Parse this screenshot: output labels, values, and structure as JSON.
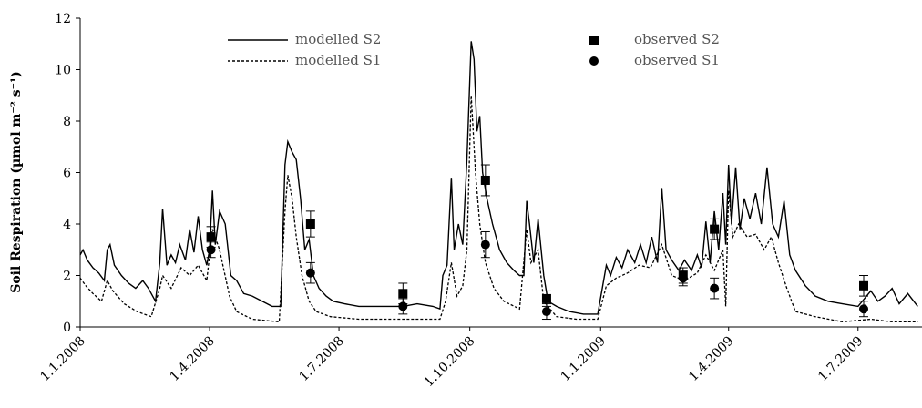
{
  "chart_data": {
    "type": "line",
    "title": "",
    "xlabel": "",
    "ylabel": "Soil Respiration (µmol m⁻² s⁻¹)",
    "ylim": [
      0,
      12
    ],
    "yticks": [
      0,
      2,
      4,
      6,
      8,
      10,
      12
    ],
    "xlim": [
      "2008-01-01",
      "2009-08-15"
    ],
    "xticks": [
      {
        "date": "2008-01-01",
        "label": "1.1.2008"
      },
      {
        "date": "2008-04-01",
        "label": "1.4.2008"
      },
      {
        "date": "2008-07-01",
        "label": "1.7.2008"
      },
      {
        "date": "2008-10-01",
        "label": "1.10.2008"
      },
      {
        "date": "2009-01-01",
        "label": "1.1.2009"
      },
      {
        "date": "2009-04-01",
        "label": "1.4.2009"
      },
      {
        "date": "2009-07-01",
        "label": "1.7.2009"
      }
    ],
    "grid": false,
    "legend_placement": "top",
    "series": [
      {
        "name": "modelled S2",
        "kind": "line",
        "style": "solid",
        "color": "#000000",
        "points": [
          [
            "2008-01-01",
            2.8
          ],
          [
            "2008-01-03",
            3.0
          ],
          [
            "2008-01-06",
            2.6
          ],
          [
            "2008-01-10",
            2.3
          ],
          [
            "2008-01-14",
            2.1
          ],
          [
            "2008-01-18",
            1.8
          ],
          [
            "2008-01-20",
            3.0
          ],
          [
            "2008-01-22",
            3.2
          ],
          [
            "2008-01-25",
            2.4
          ],
          [
            "2008-01-30",
            2.0
          ],
          [
            "2008-02-04",
            1.7
          ],
          [
            "2008-02-09",
            1.5
          ],
          [
            "2008-02-14",
            1.8
          ],
          [
            "2008-02-18",
            1.5
          ],
          [
            "2008-02-23",
            1.0
          ],
          [
            "2008-02-26",
            2.5
          ],
          [
            "2008-02-28",
            4.6
          ],
          [
            "2008-03-02",
            2.4
          ],
          [
            "2008-03-05",
            2.8
          ],
          [
            "2008-03-08",
            2.5
          ],
          [
            "2008-03-11",
            3.2
          ],
          [
            "2008-03-15",
            2.6
          ],
          [
            "2008-03-18",
            3.8
          ],
          [
            "2008-03-21",
            2.9
          ],
          [
            "2008-03-24",
            4.3
          ],
          [
            "2008-03-27",
            3.0
          ],
          [
            "2008-03-30",
            2.4
          ],
          [
            "2008-04-01",
            3.0
          ],
          [
            "2008-04-03",
            5.3
          ],
          [
            "2008-04-05",
            3.2
          ],
          [
            "2008-04-08",
            4.5
          ],
          [
            "2008-04-12",
            4.0
          ],
          [
            "2008-04-16",
            2.0
          ],
          [
            "2008-04-20",
            1.8
          ],
          [
            "2008-04-25",
            1.3
          ],
          [
            "2008-05-01",
            1.2
          ],
          [
            "2008-05-08",
            1.0
          ],
          [
            "2008-05-15",
            0.8
          ],
          [
            "2008-05-21",
            0.8
          ],
          [
            "2008-05-24",
            6.3
          ],
          [
            "2008-05-26",
            7.2
          ],
          [
            "2008-05-29",
            6.8
          ],
          [
            "2008-06-01",
            6.5
          ],
          [
            "2008-06-04",
            5.0
          ],
          [
            "2008-06-07",
            3.0
          ],
          [
            "2008-06-10",
            3.4
          ],
          [
            "2008-06-13",
            2.0
          ],
          [
            "2008-06-17",
            1.5
          ],
          [
            "2008-06-22",
            1.2
          ],
          [
            "2008-06-27",
            1.0
          ],
          [
            "2008-07-05",
            0.9
          ],
          [
            "2008-07-15",
            0.8
          ],
          [
            "2008-07-25",
            0.8
          ],
          [
            "2008-08-05",
            0.8
          ],
          [
            "2008-08-15",
            0.8
          ],
          [
            "2008-08-25",
            0.9
          ],
          [
            "2008-09-05",
            0.8
          ],
          [
            "2008-09-10",
            0.7
          ],
          [
            "2008-09-12",
            2.0
          ],
          [
            "2008-09-15",
            2.4
          ],
          [
            "2008-09-18",
            5.8
          ],
          [
            "2008-09-20",
            3.0
          ],
          [
            "2008-09-23",
            4.0
          ],
          [
            "2008-09-26",
            3.2
          ],
          [
            "2008-09-29",
            6.5
          ],
          [
            "2008-10-02",
            11.1
          ],
          [
            "2008-10-04",
            10.4
          ],
          [
            "2008-10-06",
            7.6
          ],
          [
            "2008-10-08",
            8.2
          ],
          [
            "2008-10-10",
            6.0
          ],
          [
            "2008-10-13",
            5.0
          ],
          [
            "2008-10-17",
            4.0
          ],
          [
            "2008-10-22",
            3.0
          ],
          [
            "2008-10-27",
            2.5
          ],
          [
            "2008-11-01",
            2.2
          ],
          [
            "2008-11-05",
            2.0
          ],
          [
            "2008-11-08",
            2.0
          ],
          [
            "2008-11-10",
            4.9
          ],
          [
            "2008-11-12",
            4.0
          ],
          [
            "2008-11-15",
            2.5
          ],
          [
            "2008-11-18",
            4.2
          ],
          [
            "2008-11-22",
            2.0
          ],
          [
            "2008-11-25",
            1.0
          ],
          [
            "2008-12-01",
            0.8
          ],
          [
            "2008-12-10",
            0.6
          ],
          [
            "2008-12-20",
            0.5
          ],
          [
            "2008-12-30",
            0.5
          ],
          [
            "2009-01-05",
            2.4
          ],
          [
            "2009-01-08",
            2.0
          ],
          [
            "2009-01-12",
            2.7
          ],
          [
            "2009-01-16",
            2.3
          ],
          [
            "2009-01-20",
            3.0
          ],
          [
            "2009-01-25",
            2.5
          ],
          [
            "2009-01-29",
            3.2
          ],
          [
            "2009-02-02",
            2.5
          ],
          [
            "2009-02-06",
            3.5
          ],
          [
            "2009-02-10",
            2.5
          ],
          [
            "2009-02-13",
            5.4
          ],
          [
            "2009-02-16",
            3.0
          ],
          [
            "2009-02-20",
            2.6
          ],
          [
            "2009-02-25",
            2.2
          ],
          [
            "2009-03-01",
            2.6
          ],
          [
            "2009-03-06",
            2.2
          ],
          [
            "2009-03-10",
            2.8
          ],
          [
            "2009-03-13",
            2.3
          ],
          [
            "2009-03-16",
            4.1
          ],
          [
            "2009-03-19",
            2.5
          ],
          [
            "2009-03-22",
            4.5
          ],
          [
            "2009-03-25",
            3.0
          ],
          [
            "2009-03-28",
            5.2
          ],
          [
            "2009-03-30",
            3.2
          ],
          [
            "2009-04-01",
            6.3
          ],
          [
            "2009-04-03",
            4.0
          ],
          [
            "2009-04-06",
            6.2
          ],
          [
            "2009-04-09",
            3.8
          ],
          [
            "2009-04-12",
            5.0
          ],
          [
            "2009-04-16",
            4.2
          ],
          [
            "2009-04-20",
            5.2
          ],
          [
            "2009-04-24",
            4.0
          ],
          [
            "2009-04-28",
            6.2
          ],
          [
            "2009-05-02",
            4.0
          ],
          [
            "2009-05-06",
            3.5
          ],
          [
            "2009-05-10",
            4.9
          ],
          [
            "2009-05-14",
            2.8
          ],
          [
            "2009-05-18",
            2.2
          ],
          [
            "2009-05-25",
            1.6
          ],
          [
            "2009-06-01",
            1.2
          ],
          [
            "2009-06-10",
            1.0
          ],
          [
            "2009-06-20",
            0.9
          ],
          [
            "2009-07-01",
            0.8
          ],
          [
            "2009-07-10",
            1.4
          ],
          [
            "2009-07-15",
            1.0
          ],
          [
            "2009-07-20",
            1.2
          ],
          [
            "2009-07-25",
            1.5
          ],
          [
            "2009-07-30",
            0.9
          ],
          [
            "2009-08-05",
            1.3
          ],
          [
            "2009-08-12",
            0.8
          ]
        ]
      },
      {
        "name": "modelled S1",
        "kind": "line",
        "style": "dashed",
        "color": "#000000",
        "points": [
          [
            "2008-01-01",
            1.9
          ],
          [
            "2008-01-05",
            1.6
          ],
          [
            "2008-01-10",
            1.3
          ],
          [
            "2008-01-16",
            1.0
          ],
          [
            "2008-01-20",
            1.8
          ],
          [
            "2008-01-24",
            1.4
          ],
          [
            "2008-02-01",
            0.9
          ],
          [
            "2008-02-10",
            0.6
          ],
          [
            "2008-02-20",
            0.4
          ],
          [
            "2008-02-26",
            1.5
          ],
          [
            "2008-02-28",
            2.0
          ],
          [
            "2008-03-05",
            1.5
          ],
          [
            "2008-03-12",
            2.3
          ],
          [
            "2008-03-18",
            2.0
          ],
          [
            "2008-03-24",
            2.4
          ],
          [
            "2008-03-30",
            1.8
          ],
          [
            "2008-04-03",
            3.8
          ],
          [
            "2008-04-08",
            3.0
          ],
          [
            "2008-04-15",
            1.2
          ],
          [
            "2008-04-20",
            0.6
          ],
          [
            "2008-05-01",
            0.3
          ],
          [
            "2008-05-20",
            0.2
          ],
          [
            "2008-05-24",
            4.5
          ],
          [
            "2008-05-26",
            5.9
          ],
          [
            "2008-05-29",
            5.0
          ],
          [
            "2008-06-01",
            3.5
          ],
          [
            "2008-06-05",
            2.0
          ],
          [
            "2008-06-10",
            1.0
          ],
          [
            "2008-06-15",
            0.6
          ],
          [
            "2008-06-25",
            0.4
          ],
          [
            "2008-07-15",
            0.3
          ],
          [
            "2008-08-15",
            0.3
          ],
          [
            "2008-09-10",
            0.3
          ],
          [
            "2008-09-14",
            1.0
          ],
          [
            "2008-09-18",
            2.5
          ],
          [
            "2008-09-22",
            1.2
          ],
          [
            "2008-09-26",
            1.6
          ],
          [
            "2008-09-29",
            3.0
          ],
          [
            "2008-10-02",
            9.0
          ],
          [
            "2008-10-05",
            6.0
          ],
          [
            "2008-10-08",
            4.0
          ],
          [
            "2008-10-12",
            2.5
          ],
          [
            "2008-10-18",
            1.5
          ],
          [
            "2008-10-25",
            1.0
          ],
          [
            "2008-11-05",
            0.7
          ],
          [
            "2008-11-10",
            3.8
          ],
          [
            "2008-11-13",
            2.5
          ],
          [
            "2008-11-18",
            3.0
          ],
          [
            "2008-11-22",
            1.0
          ],
          [
            "2008-12-01",
            0.4
          ],
          [
            "2008-12-15",
            0.3
          ],
          [
            "2008-12-30",
            0.3
          ],
          [
            "2009-01-05",
            1.6
          ],
          [
            "2009-01-12",
            1.9
          ],
          [
            "2009-01-20",
            2.1
          ],
          [
            "2009-01-28",
            2.4
          ],
          [
            "2009-02-05",
            2.3
          ],
          [
            "2009-02-13",
            3.2
          ],
          [
            "2009-02-20",
            2.0
          ],
          [
            "2009-03-01",
            1.8
          ],
          [
            "2009-03-10",
            2.1
          ],
          [
            "2009-03-16",
            2.8
          ],
          [
            "2009-03-22",
            2.2
          ],
          [
            "2009-03-28",
            3.0
          ],
          [
            "2009-03-30",
            0.8
          ],
          [
            "2009-04-01",
            5.3
          ],
          [
            "2009-04-04",
            3.5
          ],
          [
            "2009-04-08",
            4.0
          ],
          [
            "2009-04-14",
            3.5
          ],
          [
            "2009-04-20",
            3.6
          ],
          [
            "2009-04-26",
            3.0
          ],
          [
            "2009-05-01",
            3.5
          ],
          [
            "2009-05-06",
            2.5
          ],
          [
            "2009-05-12",
            1.5
          ],
          [
            "2009-05-18",
            0.6
          ],
          [
            "2009-06-01",
            0.4
          ],
          [
            "2009-06-20",
            0.2
          ],
          [
            "2009-07-10",
            0.3
          ],
          [
            "2009-07-25",
            0.2
          ],
          [
            "2009-08-12",
            0.2
          ]
        ]
      },
      {
        "name": "observed S2",
        "kind": "points",
        "marker": "square",
        "color": "#000000",
        "points": [
          {
            "x": "2008-04-02",
            "y": 3.5,
            "err": 0.4
          },
          {
            "x": "2008-06-11",
            "y": 4.0,
            "err": 0.5
          },
          {
            "x": "2008-08-15",
            "y": 1.3,
            "err": 0.4
          },
          {
            "x": "2008-10-12",
            "y": 5.7,
            "err": 0.6
          },
          {
            "x": "2008-11-24",
            "y": 1.1,
            "err": 0.3
          },
          {
            "x": "2009-02-28",
            "y": 2.0,
            "err": 0.3
          },
          {
            "x": "2009-03-22",
            "y": 3.8,
            "err": 0.4
          },
          {
            "x": "2009-07-05",
            "y": 1.6,
            "err": 0.4
          }
        ]
      },
      {
        "name": "observed S1",
        "kind": "points",
        "marker": "circle",
        "color": "#000000",
        "points": [
          {
            "x": "2008-04-02",
            "y": 3.0,
            "err": 0.3
          },
          {
            "x": "2008-06-11",
            "y": 2.1,
            "err": 0.4
          },
          {
            "x": "2008-08-15",
            "y": 0.8,
            "err": 0.3
          },
          {
            "x": "2008-10-12",
            "y": 3.2,
            "err": 0.5
          },
          {
            "x": "2008-11-24",
            "y": 0.6,
            "err": 0.3
          },
          {
            "x": "2009-02-28",
            "y": 1.9,
            "err": 0.3
          },
          {
            "x": "2009-03-22",
            "y": 1.5,
            "err": 0.4
          },
          {
            "x": "2009-07-05",
            "y": 0.7,
            "err": 0.3
          }
        ]
      }
    ]
  }
}
